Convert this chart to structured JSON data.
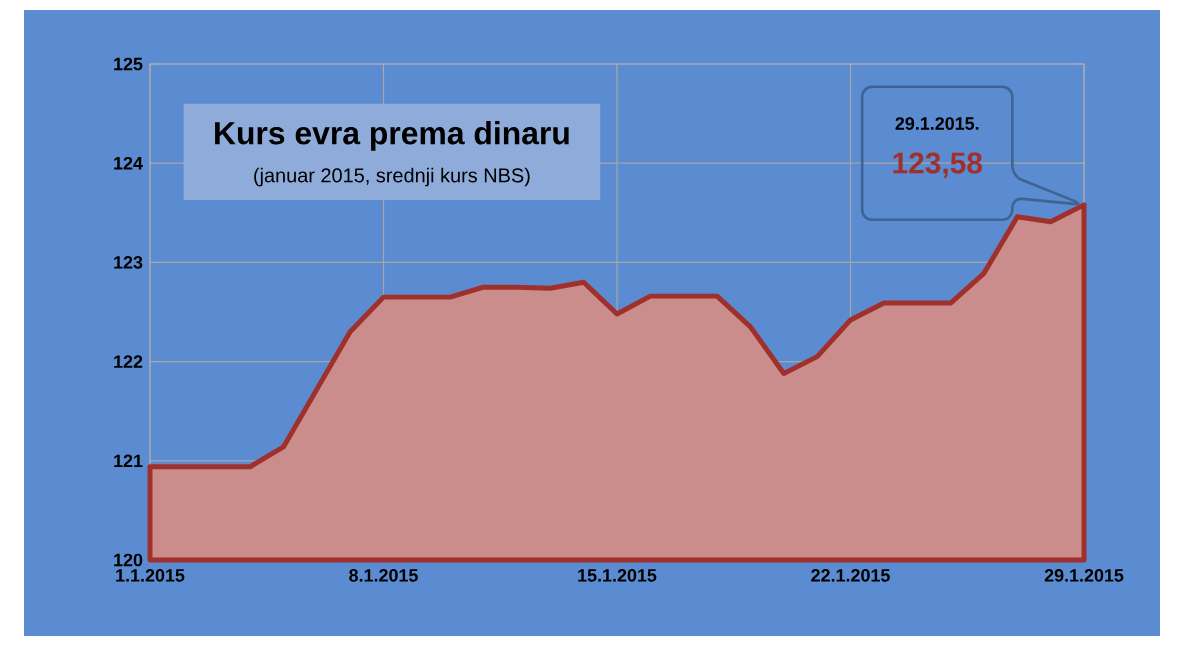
{
  "chart_data": {
    "type": "area",
    "title": "Kurs evra prema dinaru",
    "subtitle": "(januar 2015, srednji kurs NBS)",
    "x": [
      "2015-01-01",
      "2015-01-02",
      "2015-01-03",
      "2015-01-04",
      "2015-01-05",
      "2015-01-06",
      "2015-01-07",
      "2015-01-08",
      "2015-01-09",
      "2015-01-10",
      "2015-01-11",
      "2015-01-12",
      "2015-01-13",
      "2015-01-14",
      "2015-01-15",
      "2015-01-16",
      "2015-01-17",
      "2015-01-18",
      "2015-01-19",
      "2015-01-20",
      "2015-01-21",
      "2015-01-22",
      "2015-01-23",
      "2015-01-24",
      "2015-01-25",
      "2015-01-26",
      "2015-01-27",
      "2015-01-28",
      "2015-01-29"
    ],
    "values": [
      120.94,
      120.94,
      120.94,
      120.94,
      121.14,
      121.72,
      122.3,
      122.65,
      122.65,
      122.65,
      122.75,
      122.75,
      122.74,
      122.8,
      122.48,
      122.66,
      122.66,
      122.66,
      122.35,
      121.88,
      122.05,
      122.42,
      122.59,
      122.59,
      122.59,
      122.89,
      123.46,
      123.41,
      123.58
    ],
    "color": "#a0302c",
    "xlim": [
      "2015-01-01",
      "2015-01-29"
    ],
    "xticks": [
      {
        "value": "2015-01-01",
        "label": "1.1.2015"
      },
      {
        "value": "2015-01-08",
        "label": "8.1.2015"
      },
      {
        "value": "2015-01-15",
        "label": "15.1.2015"
      },
      {
        "value": "2015-01-22",
        "label": "22.1.2015"
      },
      {
        "value": "2015-01-29",
        "label": "29.1.2015"
      }
    ],
    "ylim": [
      120,
      125
    ],
    "yticks": [
      120,
      121,
      122,
      123,
      124,
      125
    ],
    "grid": true,
    "annotations": [
      "29.1.2015.",
      "123,58"
    ]
  }
}
